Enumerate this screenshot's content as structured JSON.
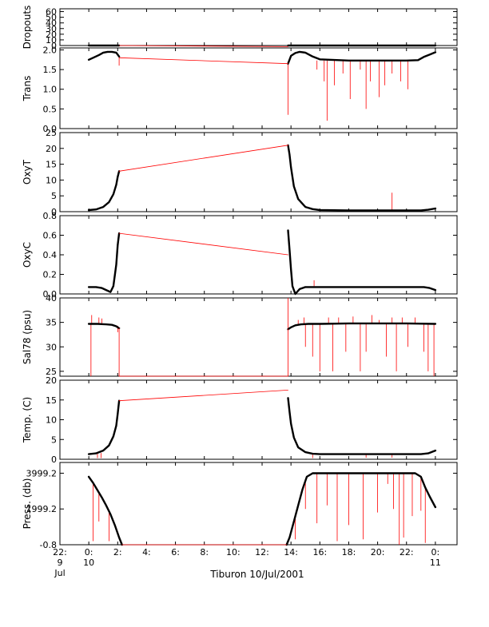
{
  "chart_data": [
    {
      "type": "line",
      "ylabel": "Dropouts",
      "ylim": [
        0,
        65
      ],
      "yticks": [
        0,
        10,
        20,
        30,
        40,
        50,
        60
      ],
      "series": [
        {
          "kind": "data",
          "x": [
            0,
            0.5,
            1,
            1.5,
            2.1
          ],
          "y": [
            0,
            0,
            0,
            0,
            0
          ]
        },
        {
          "kind": "data",
          "x": [
            13.8,
            15,
            17,
            19,
            21,
            22.8,
            24
          ],
          "y": [
            0,
            0,
            0,
            0,
            0,
            0,
            0
          ]
        },
        {
          "kind": "gap",
          "x": [
            2.1,
            13.8
          ],
          "y": [
            0,
            -2
          ]
        }
      ]
    },
    {
      "type": "line",
      "ylabel": "Trans",
      "ylim": [
        0,
        2.05
      ],
      "yticks": [
        0.0,
        0.5,
        1.0,
        1.5,
        2.0
      ],
      "ytick_labels": [
        "0.0",
        "0.5",
        "1.0",
        "1.5",
        "2.0"
      ],
      "series": [
        {
          "kind": "data",
          "x": [
            0,
            0.3,
            0.7,
            1.0,
            1.3,
            1.6,
            1.9,
            2.1
          ],
          "y": [
            1.75,
            1.8,
            1.87,
            1.93,
            1.95,
            1.95,
            1.93,
            1.83
          ]
        },
        {
          "kind": "data",
          "x": [
            13.8,
            14.0,
            14.3,
            14.6,
            15.0,
            15.5,
            16.0,
            18.0,
            20.0,
            22.0,
            22.8,
            23.2,
            23.6,
            24.0
          ],
          "y": [
            1.65,
            1.85,
            1.92,
            1.95,
            1.93,
            1.83,
            1.76,
            1.73,
            1.73,
            1.73,
            1.74,
            1.82,
            1.88,
            1.94
          ]
        },
        {
          "kind": "gap",
          "x": [
            2.1,
            13.8
          ],
          "y": [
            1.8,
            1.65
          ]
        }
      ],
      "spikes": [
        {
          "x": 2.1,
          "y0": 1.8,
          "y1": 1.6
        },
        {
          "x": 13.8,
          "y0": 1.65,
          "y1": 0.35
        },
        {
          "x": 15.8,
          "y0": 1.73,
          "y1": 1.5
        },
        {
          "x": 16.3,
          "y0": 1.73,
          "y1": 1.2
        },
        {
          "x": 16.5,
          "y0": 1.73,
          "y1": 0.2
        },
        {
          "x": 17.0,
          "y0": 1.73,
          "y1": 1.1
        },
        {
          "x": 17.6,
          "y0": 1.73,
          "y1": 1.4
        },
        {
          "x": 18.1,
          "y0": 1.73,
          "y1": 0.75
        },
        {
          "x": 18.8,
          "y0": 1.73,
          "y1": 1.5
        },
        {
          "x": 19.2,
          "y0": 1.73,
          "y1": 0.5
        },
        {
          "x": 19.5,
          "y0": 1.73,
          "y1": 1.2
        },
        {
          "x": 20.1,
          "y0": 1.73,
          "y1": 0.8
        },
        {
          "x": 20.5,
          "y0": 1.73,
          "y1": 1.1
        },
        {
          "x": 21.0,
          "y0": 1.73,
          "y1": 1.4
        },
        {
          "x": 21.6,
          "y0": 1.73,
          "y1": 1.2
        },
        {
          "x": 22.1,
          "y0": 1.73,
          "y1": 1.0
        }
      ]
    },
    {
      "type": "line",
      "ylabel": "OxyT",
      "ylim": [
        0,
        25
      ],
      "yticks": [
        0,
        5,
        10,
        15,
        20,
        25
      ],
      "series": [
        {
          "kind": "data",
          "x": [
            0,
            0.5,
            1.0,
            1.4,
            1.7,
            1.9,
            2.0,
            2.1
          ],
          "y": [
            0.5,
            0.7,
            1.5,
            3.0,
            5.5,
            8.5,
            11,
            12.8
          ]
        },
        {
          "kind": "data",
          "x": [
            13.8,
            13.9,
            14.0,
            14.2,
            14.5,
            15.0,
            15.5,
            16.0,
            18.0,
            20.0,
            22.0,
            23.0,
            23.5,
            24.0
          ],
          "y": [
            21,
            18,
            14,
            8,
            4,
            1.5,
            0.8,
            0.5,
            0.4,
            0.4,
            0.4,
            0.4,
            0.6,
            1.0
          ]
        },
        {
          "kind": "gap",
          "x": [
            2.1,
            13.8
          ],
          "y": [
            12.8,
            21
          ]
        }
      ],
      "spikes": [
        {
          "x": 21.0,
          "y0": 0.5,
          "y1": 6
        }
      ]
    },
    {
      "type": "line",
      "ylabel": "OxyC",
      "ylim": [
        0,
        0.8
      ],
      "yticks": [
        0.0,
        0.2,
        0.4,
        0.6,
        0.8
      ],
      "ytick_labels": [
        "0.0",
        "0.2",
        "0.4",
        "0.6",
        "0.8"
      ],
      "series": [
        {
          "kind": "data",
          "x": [
            0,
            0.5,
            0.9,
            1.2,
            1.5,
            1.7,
            1.9,
            2.0,
            2.1
          ],
          "y": [
            0.07,
            0.07,
            0.06,
            0.04,
            0.02,
            0.08,
            0.3,
            0.5,
            0.62
          ]
        },
        {
          "kind": "data",
          "x": [
            13.8,
            13.9,
            14.0,
            14.1,
            14.3,
            14.6,
            15.0,
            16.0,
            18.0,
            20.0,
            22.0,
            23.2,
            23.6,
            24.0
          ],
          "y": [
            0.65,
            0.45,
            0.25,
            0.08,
            0.0,
            0.05,
            0.07,
            0.07,
            0.07,
            0.07,
            0.07,
            0.07,
            0.06,
            0.04
          ]
        },
        {
          "kind": "gap",
          "x": [
            2.1,
            13.8
          ],
          "y": [
            0.62,
            0.4
          ]
        }
      ],
      "spikes": [
        {
          "x": 15.6,
          "y0": 0.08,
          "y1": 0.14
        }
      ]
    },
    {
      "type": "line",
      "ylabel": "Sal78 (psu)",
      "ylim": [
        24,
        40
      ],
      "yticks": [
        25,
        30,
        35,
        40
      ],
      "series": [
        {
          "kind": "data",
          "x": [
            0,
            0.6,
            1.2,
            1.6,
            1.9,
            2.1
          ],
          "y": [
            34.7,
            34.7,
            34.6,
            34.5,
            34.2,
            33.8
          ]
        },
        {
          "kind": "data",
          "x": [
            13.8,
            14.0,
            14.3,
            14.7,
            15.2,
            16.0,
            18.0,
            20.0,
            22.0,
            24.0
          ],
          "y": [
            33.6,
            34.0,
            34.4,
            34.6,
            34.7,
            34.7,
            34.8,
            34.8,
            34.8,
            34.7
          ]
        },
        {
          "kind": "gap",
          "x": [
            2.1,
            2.1,
            13.8,
            13.8
          ],
          "y": [
            33.8,
            24.0,
            24.0,
            33.6
          ]
        }
      ],
      "spikes": [
        {
          "x": 0.15,
          "y0": 34.7,
          "y1": 24
        },
        {
          "x": 0.2,
          "y0": 34.7,
          "y1": 36.5
        },
        {
          "x": 0.7,
          "y0": 34.7,
          "y1": 36
        },
        {
          "x": 0.9,
          "y0": 34.7,
          "y1": 35.8
        },
        {
          "x": 2.0,
          "y0": 34.3,
          "y1": 33
        },
        {
          "x": 13.8,
          "y0": 33.6,
          "y1": 40
        },
        {
          "x": 14.5,
          "y0": 34.6,
          "y1": 35.5
        },
        {
          "x": 14.9,
          "y0": 34.7,
          "y1": 36
        },
        {
          "x": 15.0,
          "y0": 34.7,
          "y1": 30
        },
        {
          "x": 15.5,
          "y0": 34.7,
          "y1": 28
        },
        {
          "x": 16.0,
          "y0": 34.7,
          "y1": 25
        },
        {
          "x": 16.6,
          "y0": 34.7,
          "y1": 36
        },
        {
          "x": 16.9,
          "y0": 34.7,
          "y1": 25
        },
        {
          "x": 17.3,
          "y0": 34.7,
          "y1": 36
        },
        {
          "x": 17.8,
          "y0": 34.8,
          "y1": 29
        },
        {
          "x": 18.3,
          "y0": 34.8,
          "y1": 36.2
        },
        {
          "x": 18.8,
          "y0": 34.8,
          "y1": 25
        },
        {
          "x": 19.2,
          "y0": 34.8,
          "y1": 29
        },
        {
          "x": 19.6,
          "y0": 34.8,
          "y1": 36.5
        },
        {
          "x": 20.1,
          "y0": 34.8,
          "y1": 35.5
        },
        {
          "x": 20.6,
          "y0": 34.8,
          "y1": 28
        },
        {
          "x": 21.0,
          "y0": 34.8,
          "y1": 36
        },
        {
          "x": 21.3,
          "y0": 34.8,
          "y1": 25
        },
        {
          "x": 21.7,
          "y0": 34.8,
          "y1": 36
        },
        {
          "x": 22.1,
          "y0": 34.8,
          "y1": 30
        },
        {
          "x": 22.6,
          "y0": 34.8,
          "y1": 36
        },
        {
          "x": 23.2,
          "y0": 34.8,
          "y1": 29
        },
        {
          "x": 23.5,
          "y0": 34.8,
          "y1": 25
        },
        {
          "x": 23.9,
          "y0": 34.7,
          "y1": 24
        }
      ]
    },
    {
      "type": "line",
      "ylabel": "Temp. (C)",
      "ylim": [
        0,
        20
      ],
      "yticks": [
        0,
        5,
        10,
        15,
        20
      ],
      "series": [
        {
          "kind": "data",
          "x": [
            0,
            0.5,
            1.0,
            1.4,
            1.7,
            1.9,
            2.0,
            2.1
          ],
          "y": [
            1.3,
            1.5,
            2.2,
            3.5,
            5.8,
            8.5,
            11.5,
            14.8
          ]
        },
        {
          "kind": "data",
          "x": [
            13.8,
            13.9,
            14.0,
            14.2,
            14.5,
            15.0,
            15.5,
            16.0,
            18.0,
            20.0,
            22.0,
            23.0,
            23.5,
            24.0
          ],
          "y": [
            15.5,
            12,
            9,
            5.5,
            3,
            1.8,
            1.4,
            1.3,
            1.3,
            1.3,
            1.3,
            1.3,
            1.5,
            2.2
          ]
        },
        {
          "kind": "gap",
          "x": [
            2.1,
            13.8
          ],
          "y": [
            14.8,
            17.5
          ]
        }
      ],
      "spikes": [
        {
          "x": 0.6,
          "y0": 1.4,
          "y1": 0.3
        },
        {
          "x": 0.85,
          "y0": 1.6,
          "y1": 0.3
        },
        {
          "x": 15.5,
          "y0": 1.4,
          "y1": 0.3
        },
        {
          "x": 19.2,
          "y0": 1.3,
          "y1": 0.4
        },
        {
          "x": 21.0,
          "y0": 1.3,
          "y1": 0.4
        }
      ]
    },
    {
      "type": "line",
      "ylabel": "Press. (db)",
      "ylim": [
        -0.8,
        4600
      ],
      "yticks": [
        -0.8,
        1999.2,
        3999.2
      ],
      "ytick_labels": [
        "-0.8",
        "1999.2",
        "3999.2"
      ],
      "series": [
        {
          "kind": "data",
          "x": [
            0,
            0.3,
            0.6,
            0.9,
            1.2,
            1.5,
            1.8,
            2.1,
            2.3
          ],
          "y": [
            3800,
            3450,
            3050,
            2650,
            2200,
            1700,
            1100,
            400,
            -0.8
          ]
        },
        {
          "kind": "data",
          "x": [
            13.7,
            13.9,
            14.2,
            14.5,
            14.8,
            15.1,
            15.5,
            17.0,
            19.0,
            21.0,
            22.6,
            23.0,
            23.3,
            23.6,
            24.0
          ],
          "y": [
            -0.8,
            400,
            1300,
            2200,
            3100,
            3800,
            3999,
            3999,
            3999,
            3999,
            3999,
            3800,
            3200,
            2700,
            2100
          ]
        },
        {
          "kind": "gap",
          "x": [
            2.3,
            13.7
          ],
          "y": [
            -0.8,
            -0.8
          ]
        }
      ],
      "spikes": [
        {
          "x": 0.3,
          "y0": 3450,
          "y1": 200
        },
        {
          "x": 0.7,
          "y0": 2900,
          "y1": 1300
        },
        {
          "x": 1.4,
          "y0": 1900,
          "y1": 200
        },
        {
          "x": 14.3,
          "y0": 1500,
          "y1": 300
        },
        {
          "x": 15.0,
          "y0": 3500,
          "y1": 2000
        },
        {
          "x": 15.8,
          "y0": 3999,
          "y1": 1200
        },
        {
          "x": 16.5,
          "y0": 3999,
          "y1": 2200
        },
        {
          "x": 17.2,
          "y0": 3999,
          "y1": 200
        },
        {
          "x": 18.0,
          "y0": 3999,
          "y1": 1100
        },
        {
          "x": 19.0,
          "y0": 3999,
          "y1": 300
        },
        {
          "x": 20.0,
          "y0": 3999,
          "y1": 1800
        },
        {
          "x": 20.7,
          "y0": 3999,
          "y1": 3400
        },
        {
          "x": 21.1,
          "y0": 3999,
          "y1": 2000
        },
        {
          "x": 21.5,
          "y0": 3999,
          "y1": 0
        },
        {
          "x": 21.8,
          "y0": 3999,
          "y1": 400
        },
        {
          "x": 22.4,
          "y0": 3999,
          "y1": 1600
        },
        {
          "x": 23.0,
          "y0": 3800,
          "y1": 1900
        },
        {
          "x": 23.3,
          "y0": 3200,
          "y1": 100
        }
      ]
    }
  ],
  "x_axis": {
    "xlim": [
      -2,
      25.5
    ],
    "ticks": [
      {
        "x": -2,
        "line1": "22:",
        "line2": "9",
        "line3": "Jul"
      },
      {
        "x": 0,
        "line1": "0:",
        "line2": "10",
        "line3": ""
      },
      {
        "x": 2,
        "line1": "2:",
        "line2": "",
        "line3": ""
      },
      {
        "x": 4,
        "line1": "4:",
        "line2": "",
        "line3": ""
      },
      {
        "x": 6,
        "line1": "6:",
        "line2": "",
        "line3": ""
      },
      {
        "x": 8,
        "line1": "8:",
        "line2": "",
        "line3": ""
      },
      {
        "x": 10,
        "line1": "10:",
        "line2": "",
        "line3": ""
      },
      {
        "x": 12,
        "line1": "12:",
        "line2": "",
        "line3": ""
      },
      {
        "x": 14,
        "line1": "14:",
        "line2": "",
        "line3": ""
      },
      {
        "x": 16,
        "line1": "16:",
        "line2": "",
        "line3": ""
      },
      {
        "x": 18,
        "line1": "18:",
        "line2": "",
        "line3": ""
      },
      {
        "x": 20,
        "line1": "20:",
        "line2": "",
        "line3": ""
      },
      {
        "x": 22,
        "line1": "22:",
        "line2": "",
        "line3": ""
      },
      {
        "x": 24,
        "line1": "0:",
        "line2": "11",
        "line3": ""
      }
    ],
    "xlabel": "Tiburon 10/Jul/2001"
  },
  "colors": {
    "data": "#000000",
    "gap": "#ff0000",
    "spike": "#ff0000",
    "axis": "#000000",
    "background": "#ffffff"
  }
}
